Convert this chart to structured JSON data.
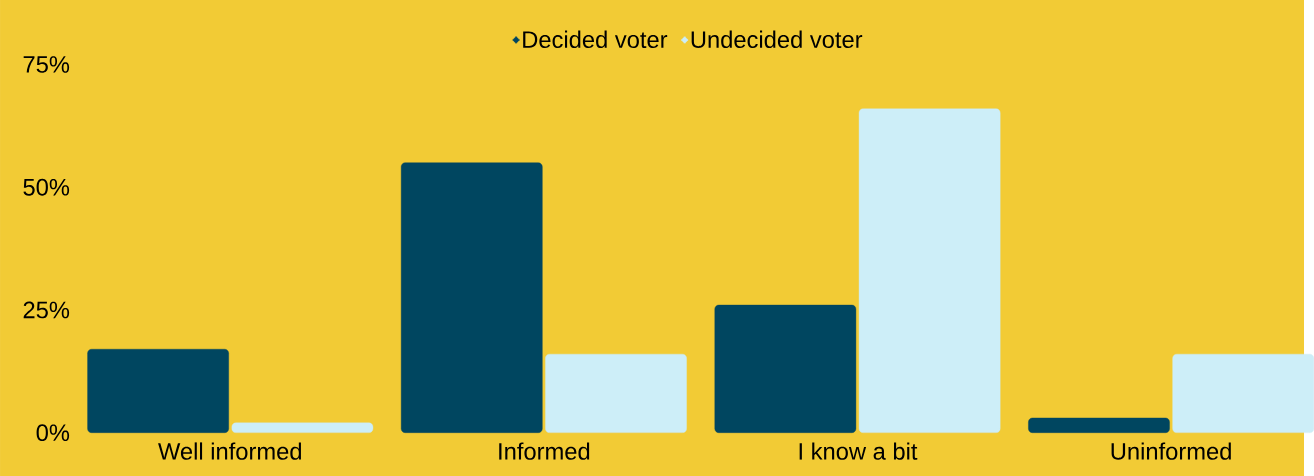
{
  "chart_data": {
    "type": "bar",
    "categories": [
      "Well informed",
      "Informed",
      "I know a bit",
      "Uninformed"
    ],
    "series": [
      {
        "name": "Decided voter",
        "color": "#004660",
        "values": [
          17,
          55,
          26,
          3
        ]
      },
      {
        "name": "Undecided voter",
        "color": "#cdeef8",
        "values": [
          2,
          16,
          66,
          16
        ]
      }
    ],
    "ylim": [
      0,
      75
    ],
    "yticks": [
      {
        "value": 0,
        "label": "0%"
      },
      {
        "value": 25,
        "label": "25%"
      },
      {
        "value": 50,
        "label": "50%"
      },
      {
        "value": 75,
        "label": "75%"
      }
    ],
    "grid": false,
    "legend": "top"
  }
}
